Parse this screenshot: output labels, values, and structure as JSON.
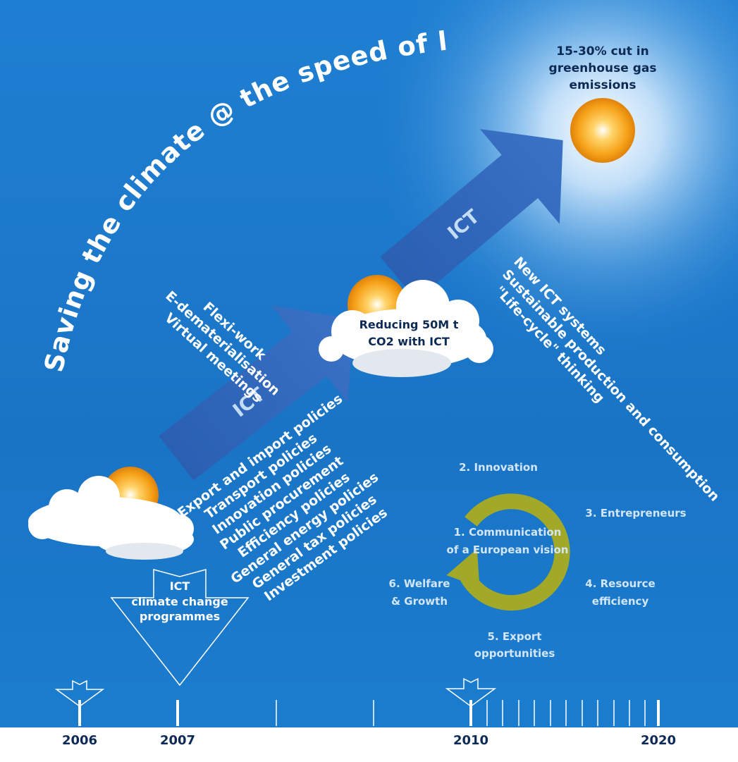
{
  "title": "Saving the climate @ the speed of light",
  "goal": {
    "lines": [
      "15-30% cut in",
      "greenhouse gas",
      "emissions"
    ]
  },
  "milestone": {
    "lines": [
      "Reducing 50M t",
      "CO2 with ICT"
    ]
  },
  "arrows": [
    {
      "label": "ICT"
    },
    {
      "label": "ICT"
    }
  ],
  "lists": {
    "early": [
      "Flexi-work",
      "E-dematerialisation",
      "Virtual meetings"
    ],
    "policies": [
      "Export and import policies",
      "Transport policies",
      "Innovation policies",
      "Public procurement",
      "Efficiency policies",
      "General energy policies",
      "General tax policies",
      "Investment policies"
    ],
    "later": [
      "New ICT systems",
      "Sustainable production and consumption",
      "\"Life-cycle\" thinking"
    ]
  },
  "cycle": {
    "steps": [
      {
        "lines": [
          "1. Communication",
          "of a European vision"
        ]
      },
      {
        "lines": [
          "2. Innovation"
        ]
      },
      {
        "lines": [
          "3. Entrepreneurs"
        ]
      },
      {
        "lines": [
          "4. Resource",
          "efficiency"
        ]
      },
      {
        "lines": [
          "5. Export",
          "opportunities"
        ]
      },
      {
        "lines": [
          "6. Welfare",
          "& Growth"
        ]
      }
    ]
  },
  "programmes": {
    "lines": [
      "ICT",
      "climate change",
      "programmes"
    ]
  },
  "timeline": {
    "years": [
      2006,
      2007,
      2010,
      2020
    ]
  }
}
